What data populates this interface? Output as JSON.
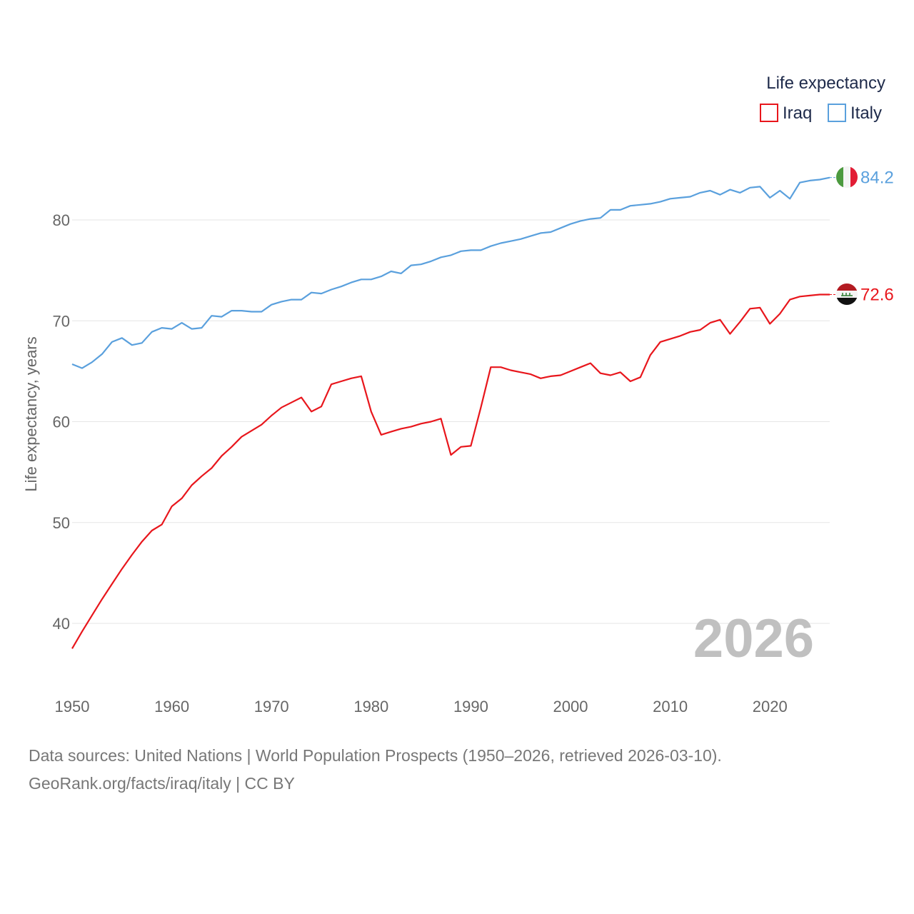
{
  "chart_data": {
    "type": "line",
    "legend_title": "Life expectancy",
    "ylabel": "Life expectancy, years",
    "xlim": [
      1950,
      2026
    ],
    "ylim": [
      35,
      90
    ],
    "x_ticks": [
      "1950",
      "1960",
      "1970",
      "1980",
      "1990",
      "2000",
      "2010",
      "2020"
    ],
    "y_ticks": [
      "40",
      "50",
      "60",
      "70",
      "80"
    ],
    "current_year": "2026",
    "x": [
      1950,
      1951,
      1952,
      1953,
      1954,
      1955,
      1956,
      1957,
      1958,
      1959,
      1960,
      1961,
      1962,
      1963,
      1964,
      1965,
      1966,
      1967,
      1968,
      1969,
      1970,
      1971,
      1972,
      1973,
      1974,
      1975,
      1976,
      1977,
      1978,
      1979,
      1980,
      1981,
      1982,
      1983,
      1984,
      1985,
      1986,
      1987,
      1988,
      1989,
      1990,
      1991,
      1992,
      1993,
      1994,
      1995,
      1996,
      1997,
      1998,
      1999,
      2000,
      2001,
      2002,
      2003,
      2004,
      2005,
      2006,
      2007,
      2008,
      2009,
      2010,
      2011,
      2012,
      2013,
      2014,
      2015,
      2016,
      2017,
      2018,
      2019,
      2020,
      2021,
      2022,
      2023,
      2024,
      2025,
      2026
    ],
    "series": [
      {
        "name": "Iraq",
        "color": "#e8161c",
        "end_label": "72.6",
        "values": [
          37.5,
          39.2,
          40.8,
          42.4,
          43.9,
          45.4,
          46.8,
          48.1,
          49.2,
          49.8,
          51.6,
          52.4,
          53.7,
          54.6,
          55.4,
          56.6,
          57.5,
          58.5,
          59.1,
          59.7,
          60.6,
          61.4,
          61.9,
          62.4,
          61.0,
          61.5,
          63.7,
          64.0,
          64.3,
          64.5,
          61.0,
          58.7,
          59.0,
          59.3,
          59.5,
          59.8,
          60.0,
          60.3,
          56.7,
          57.5,
          57.6,
          61.4,
          65.4,
          65.4,
          65.1,
          64.9,
          64.7,
          64.3,
          64.5,
          64.6,
          65.0,
          65.4,
          65.8,
          64.8,
          64.6,
          64.9,
          64.0,
          64.4,
          66.6,
          67.9,
          68.2,
          68.5,
          68.9,
          69.1,
          69.8,
          70.1,
          68.7,
          69.9,
          71.2,
          71.3,
          69.7,
          70.7,
          72.1,
          72.4,
          72.5,
          72.6,
          72.6
        ]
      },
      {
        "name": "Italy",
        "color": "#5aa0dd",
        "end_label": "84.2",
        "values": [
          65.7,
          65.3,
          65.9,
          66.7,
          67.9,
          68.3,
          67.6,
          67.8,
          68.9,
          69.3,
          69.2,
          69.8,
          69.2,
          69.3,
          70.5,
          70.4,
          71.0,
          71.0,
          70.9,
          70.9,
          71.6,
          71.9,
          72.1,
          72.1,
          72.8,
          72.7,
          73.1,
          73.4,
          73.8,
          74.1,
          74.1,
          74.4,
          74.9,
          74.7,
          75.5,
          75.6,
          75.9,
          76.3,
          76.5,
          76.9,
          77.0,
          77.0,
          77.4,
          77.7,
          77.9,
          78.1,
          78.4,
          78.7,
          78.8,
          79.2,
          79.6,
          79.9,
          80.1,
          80.2,
          81.0,
          81.0,
          81.4,
          81.5,
          81.6,
          81.8,
          82.1,
          82.2,
          82.3,
          82.7,
          82.9,
          82.5,
          83.0,
          82.7,
          83.2,
          83.3,
          82.2,
          82.9,
          82.1,
          83.7,
          83.9,
          84.0,
          84.2
        ]
      }
    ]
  },
  "footer": {
    "sources": "Data sources: United Nations | World Population Prospects (1950–2026, retrieved 2026-03-10).",
    "credit": "GeoRank.org/facts/iraq/italy | CC BY"
  }
}
